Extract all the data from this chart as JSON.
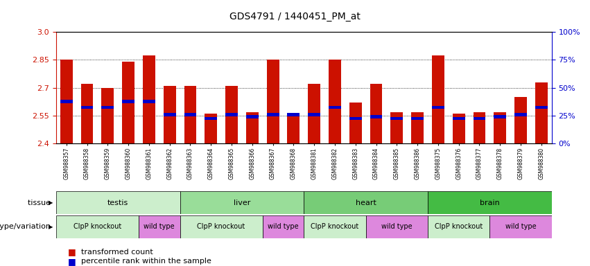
{
  "title": "GDS4791 / 1440451_PM_at",
  "samples": [
    "GSM988357",
    "GSM988358",
    "GSM988359",
    "GSM988360",
    "GSM988361",
    "GSM988362",
    "GSM988363",
    "GSM988364",
    "GSM988365",
    "GSM988366",
    "GSM988367",
    "GSM988368",
    "GSM988381",
    "GSM988382",
    "GSM988383",
    "GSM988384",
    "GSM988385",
    "GSM988386",
    "GSM988375",
    "GSM988376",
    "GSM988377",
    "GSM988378",
    "GSM988379",
    "GSM988380"
  ],
  "bar_values": [
    2.85,
    2.72,
    2.7,
    2.84,
    2.875,
    2.71,
    2.71,
    2.56,
    2.71,
    2.57,
    2.85,
    2.56,
    2.72,
    2.85,
    2.62,
    2.72,
    2.57,
    2.57,
    2.875,
    2.56,
    2.57,
    2.57,
    2.65,
    2.73
  ],
  "percentile_values": [
    2.625,
    2.595,
    2.595,
    2.625,
    2.625,
    2.555,
    2.555,
    2.535,
    2.555,
    2.545,
    2.555,
    2.555,
    2.555,
    2.595,
    2.535,
    2.545,
    2.535,
    2.535,
    2.595,
    2.535,
    2.535,
    2.545,
    2.555,
    2.595
  ],
  "y_min": 2.4,
  "y_max": 3.0,
  "y_ticks_left": [
    2.4,
    2.55,
    2.7,
    2.85,
    3.0
  ],
  "y_ticks_right_vals": [
    0,
    25,
    50,
    75,
    100
  ],
  "y_ticks_right_pos": [
    2.4,
    2.55,
    2.7,
    2.85,
    3.0
  ],
  "gridlines": [
    2.55,
    2.7,
    2.85
  ],
  "bar_color": "#CC1100",
  "percentile_color": "#0000CC",
  "bar_width": 0.6,
  "tissue_groups": [
    {
      "label": "testis",
      "start": 0,
      "end": 6,
      "color": "#CCEECC"
    },
    {
      "label": "liver",
      "start": 6,
      "end": 12,
      "color": "#99DD99"
    },
    {
      "label": "heart",
      "start": 12,
      "end": 18,
      "color": "#77CC77"
    },
    {
      "label": "brain",
      "start": 18,
      "end": 24,
      "color": "#44BB44"
    }
  ],
  "genotype_groups": [
    {
      "label": "ClpP knockout",
      "start": 0,
      "end": 4,
      "color": "#CCEECC"
    },
    {
      "label": "wild type",
      "start": 4,
      "end": 6,
      "color": "#DD88DD"
    },
    {
      "label": "ClpP knockout",
      "start": 6,
      "end": 10,
      "color": "#CCEECC"
    },
    {
      "label": "wild type",
      "start": 10,
      "end": 12,
      "color": "#DD88DD"
    },
    {
      "label": "ClpP knockout",
      "start": 12,
      "end": 15,
      "color": "#CCEECC"
    },
    {
      "label": "wild type",
      "start": 15,
      "end": 18,
      "color": "#DD88DD"
    },
    {
      "label": "ClpP knockout",
      "start": 18,
      "end": 21,
      "color": "#CCEECC"
    },
    {
      "label": "wild type",
      "start": 21,
      "end": 24,
      "color": "#DD88DD"
    }
  ],
  "legend_items": [
    {
      "label": "transformed count",
      "color": "#CC1100"
    },
    {
      "label": "percentile rank within the sample",
      "color": "#0000CC"
    }
  ],
  "tissue_label": "tissue",
  "genotype_label": "genotype/variation"
}
